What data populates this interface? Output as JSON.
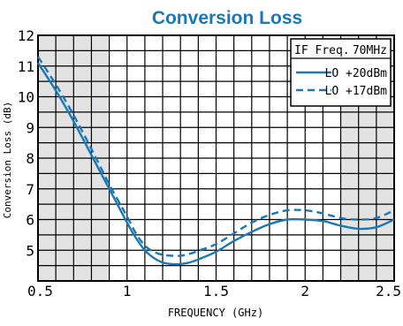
{
  "chart_data": {
    "type": "line",
    "title": "Conversion Loss",
    "xlabel": "FREQUENCY (GHz)",
    "ylabel": "Conversion Loss (dB)",
    "xlim": [
      0.5,
      2.5
    ],
    "ylim": [
      4,
      12
    ],
    "x_ticks": [
      0.5,
      1,
      1.5,
      2,
      2.5
    ],
    "x_tick_labels": [
      "0.5",
      "1",
      "1.5",
      "2",
      "2.5"
    ],
    "y_ticks": [
      5,
      6,
      7,
      8,
      9,
      10,
      11,
      12
    ],
    "y_tick_labels": [
      "5",
      "6",
      "7",
      "8",
      "9",
      "10",
      "11",
      "12"
    ],
    "grid": true,
    "shaded_x_ranges": [
      [
        0.5,
        0.9
      ],
      [
        2.2,
        2.5
      ]
    ],
    "legend": {
      "placement": "top-right",
      "header": "IF Freq.",
      "header_value": "70MHz"
    },
    "series": [
      {
        "name": "LO +20dBm",
        "style": "solid",
        "color": "#1a78b8",
        "x": [
          0.5,
          0.6,
          0.7,
          0.8,
          0.9,
          1.0,
          1.05,
          1.1,
          1.15,
          1.2,
          1.25,
          1.3,
          1.35,
          1.4,
          1.5,
          1.6,
          1.7,
          1.8,
          1.9,
          2.0,
          2.1,
          2.2,
          2.3,
          2.4,
          2.5
        ],
        "y": [
          11.1,
          10.2,
          9.2,
          8.1,
          7.0,
          5.9,
          5.4,
          5.0,
          4.75,
          4.6,
          4.55,
          4.55,
          4.6,
          4.7,
          4.95,
          5.3,
          5.6,
          5.85,
          6.0,
          6.0,
          5.95,
          5.8,
          5.7,
          5.75,
          6.0
        ]
      },
      {
        "name": "LO +17dBm",
        "style": "dashed",
        "color": "#1a78b8",
        "x": [
          0.5,
          0.6,
          0.7,
          0.8,
          0.9,
          1.0,
          1.05,
          1.1,
          1.15,
          1.2,
          1.25,
          1.3,
          1.35,
          1.4,
          1.5,
          1.6,
          1.7,
          1.8,
          1.9,
          2.0,
          2.1,
          2.2,
          2.3,
          2.4,
          2.5
        ],
        "y": [
          11.3,
          10.4,
          9.4,
          8.3,
          7.15,
          6.1,
          5.55,
          5.15,
          4.95,
          4.85,
          4.82,
          4.82,
          4.88,
          4.98,
          5.2,
          5.55,
          5.9,
          6.15,
          6.3,
          6.3,
          6.2,
          6.05,
          6.0,
          6.05,
          6.3
        ]
      }
    ]
  }
}
